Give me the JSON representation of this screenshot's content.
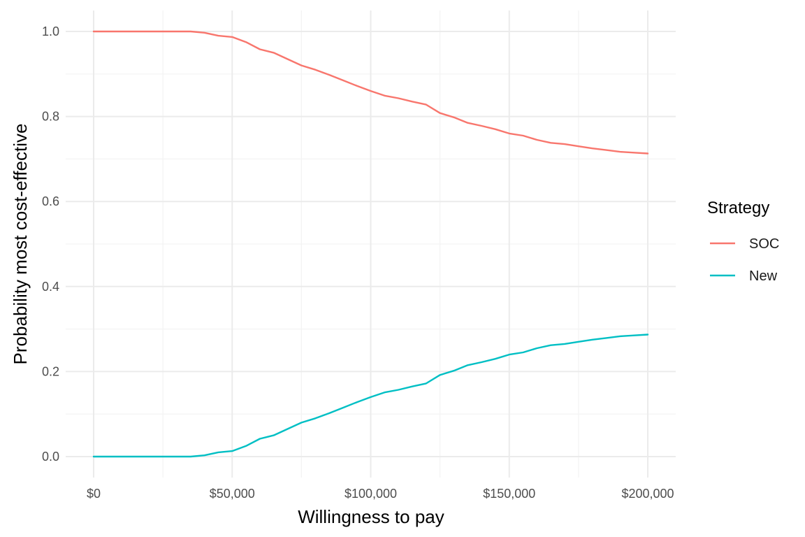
{
  "chart_data": {
    "type": "line",
    "xlabel": "Willingness to pay",
    "ylabel": "Probability most cost-effective",
    "xlim": [
      0,
      200000
    ],
    "ylim": [
      0,
      1
    ],
    "x_ticks": [
      0,
      50000,
      100000,
      150000,
      200000
    ],
    "x_tick_labels": [
      "$0",
      "$50,000",
      "$100,000",
      "$150,000",
      "$200,000"
    ],
    "y_ticks": [
      0,
      0.2,
      0.4,
      0.6,
      0.8,
      1.0
    ],
    "y_tick_labels": [
      "0.0",
      "0.2",
      "0.4",
      "0.6",
      "0.8",
      "1.0"
    ],
    "grid": true,
    "legend": {
      "title": "Strategy",
      "position": "right"
    },
    "series": [
      {
        "name": "SOC",
        "color": "#F8766D",
        "x": [
          0,
          10000,
          20000,
          30000,
          35000,
          40000,
          45000,
          50000,
          55000,
          60000,
          65000,
          70000,
          75000,
          80000,
          85000,
          90000,
          95000,
          100000,
          105000,
          110000,
          115000,
          120000,
          125000,
          130000,
          135000,
          140000,
          145000,
          150000,
          155000,
          160000,
          165000,
          170000,
          175000,
          180000,
          185000,
          190000,
          195000,
          200000
        ],
        "y": [
          1.0,
          1.0,
          1.0,
          1.0,
          1.0,
          0.997,
          0.99,
          0.987,
          0.975,
          0.958,
          0.95,
          0.935,
          0.92,
          0.91,
          0.898,
          0.885,
          0.872,
          0.86,
          0.849,
          0.843,
          0.835,
          0.828,
          0.808,
          0.798,
          0.785,
          0.778,
          0.77,
          0.76,
          0.755,
          0.745,
          0.738,
          0.735,
          0.73,
          0.725,
          0.721,
          0.717,
          0.715,
          0.713
        ]
      },
      {
        "name": "New",
        "color": "#00BFC4",
        "x": [
          0,
          10000,
          20000,
          30000,
          35000,
          40000,
          45000,
          50000,
          55000,
          60000,
          65000,
          70000,
          75000,
          80000,
          85000,
          90000,
          95000,
          100000,
          105000,
          110000,
          115000,
          120000,
          125000,
          130000,
          135000,
          140000,
          145000,
          150000,
          155000,
          160000,
          165000,
          170000,
          175000,
          180000,
          185000,
          190000,
          195000,
          200000
        ],
        "y": [
          0.0,
          0.0,
          0.0,
          0.0,
          0.0,
          0.003,
          0.01,
          0.013,
          0.025,
          0.042,
          0.05,
          0.065,
          0.08,
          0.09,
          0.102,
          0.115,
          0.128,
          0.14,
          0.151,
          0.157,
          0.165,
          0.172,
          0.192,
          0.202,
          0.215,
          0.222,
          0.23,
          0.24,
          0.245,
          0.255,
          0.262,
          0.265,
          0.27,
          0.275,
          0.279,
          0.283,
          0.285,
          0.287
        ]
      }
    ]
  }
}
